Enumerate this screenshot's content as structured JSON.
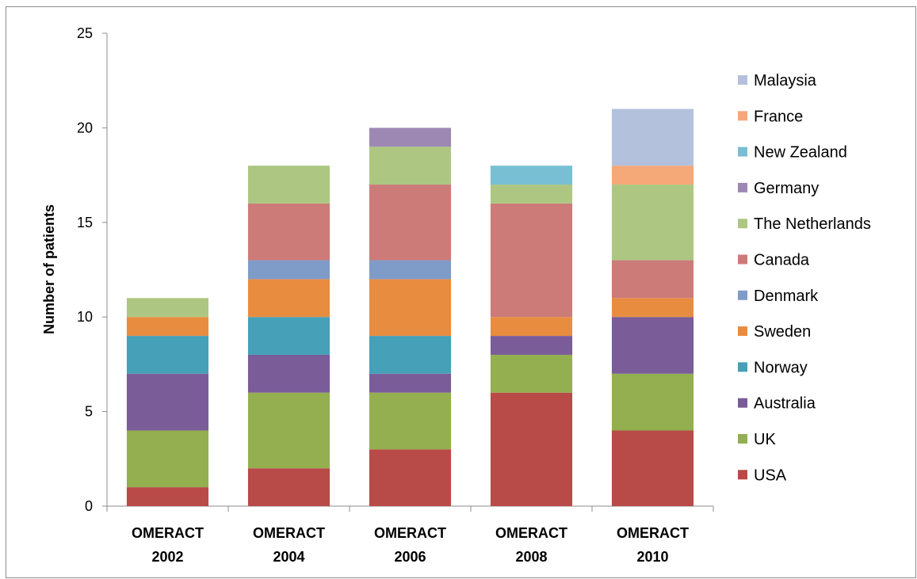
{
  "chart_data": {
    "type": "bar",
    "stacked": true,
    "title": "",
    "xlabel": "",
    "ylabel": "Number of patients",
    "ylim": [
      0,
      25
    ],
    "yticks": [
      0,
      5,
      10,
      15,
      20,
      25
    ],
    "grid": false,
    "legend_position": "right",
    "categories": [
      [
        "OMERACT",
        "2002"
      ],
      [
        "OMERACT",
        "2004"
      ],
      [
        "OMERACT",
        "2006"
      ],
      [
        "OMERACT",
        "2008"
      ],
      [
        "OMERACT",
        "2010"
      ]
    ],
    "series": [
      {
        "name": "USA",
        "color": "#B84A47",
        "values": [
          1,
          2,
          3,
          6,
          4
        ]
      },
      {
        "name": "UK",
        "color": "#93AF50",
        "values": [
          3,
          4,
          3,
          2,
          3
        ]
      },
      {
        "name": "Australia",
        "color": "#7A5C98",
        "values": [
          3,
          2,
          1,
          1,
          3
        ]
      },
      {
        "name": "Norway",
        "color": "#45A0B8",
        "values": [
          2,
          2,
          2,
          0,
          0
        ]
      },
      {
        "name": "Sweden",
        "color": "#E88D40",
        "values": [
          1,
          2,
          3,
          1,
          1
        ]
      },
      {
        "name": "Denmark",
        "color": "#7F9CC8",
        "values": [
          0,
          1,
          1,
          0,
          0
        ]
      },
      {
        "name": "Canada",
        "color": "#CC7B79",
        "values": [
          0,
          3,
          4,
          6,
          2
        ]
      },
      {
        "name": "The Netherlands",
        "color": "#ADC782",
        "values": [
          1,
          2,
          2,
          1,
          4
        ]
      },
      {
        "name": "Germany",
        "color": "#9D88B4",
        "values": [
          0,
          0,
          1,
          0,
          0
        ]
      },
      {
        "name": "New Zealand",
        "color": "#78BFD3",
        "values": [
          0,
          0,
          0,
          1,
          0
        ]
      },
      {
        "name": "France",
        "color": "#F5A878",
        "values": [
          0,
          0,
          0,
          0,
          1
        ]
      },
      {
        "name": "Malaysia",
        "color": "#B3C1DD",
        "values": [
          0,
          0,
          0,
          0,
          3
        ]
      }
    ]
  }
}
